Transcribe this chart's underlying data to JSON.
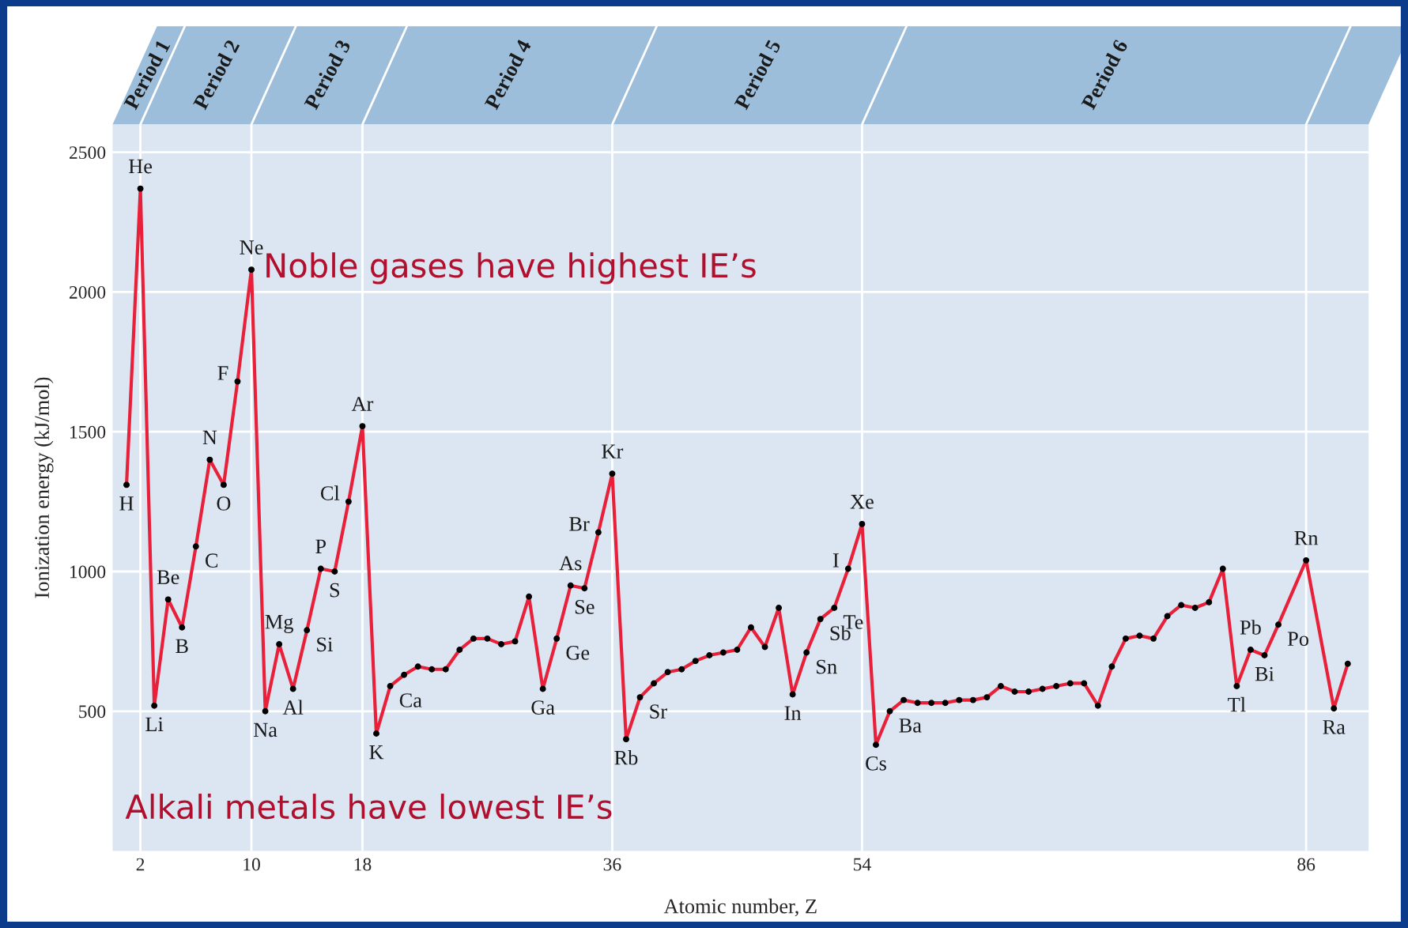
{
  "chart_data": {
    "type": "line",
    "xlabel": "Atomic number, Z",
    "ylabel": "Ionization energy (kJ/mol)",
    "xlim": [
      0,
      90.5
    ],
    "xticks": [
      2,
      10,
      18,
      36,
      54,
      86
    ],
    "ylim": [
      0,
      2600
    ],
    "yticks": [
      500,
      1000,
      1500,
      2000,
      2500
    ],
    "grid": true,
    "marker": "circle",
    "line_style": "solid",
    "series": [
      {
        "color": "#e8203a",
        "x": [
          1,
          2,
          3,
          4,
          5,
          6,
          7,
          8,
          9,
          10,
          11,
          12,
          13,
          14,
          15,
          16,
          17,
          18,
          19,
          20,
          21,
          22,
          23,
          24,
          25,
          26,
          27,
          28,
          29,
          30,
          31,
          32,
          33,
          34,
          35,
          36,
          37,
          38,
          39,
          40,
          41,
          42,
          43,
          44,
          45,
          46,
          47,
          48,
          49,
          50,
          51,
          52,
          53,
          54,
          55,
          56,
          57,
          58,
          59,
          60,
          61,
          62,
          63,
          64,
          65,
          66,
          67,
          68,
          69,
          70,
          71,
          72,
          73,
          74,
          75,
          76,
          77,
          78,
          79,
          80,
          81,
          82,
          83,
          84,
          86,
          88,
          89
        ],
        "values": [
          1310,
          2370,
          520,
          900,
          800,
          1090,
          1400,
          1310,
          1680,
          2080,
          500,
          740,
          580,
          790,
          1010,
          1000,
          1250,
          1520,
          420,
          590,
          630,
          660,
          650,
          650,
          720,
          760,
          760,
          740,
          750,
          910,
          580,
          760,
          950,
          940,
          1140,
          1350,
          400,
          550,
          600,
          640,
          650,
          680,
          700,
          710,
          720,
          800,
          730,
          870,
          560,
          710,
          830,
          870,
          1010,
          1170,
          380,
          500,
          540,
          530,
          530,
          530,
          540,
          540,
          550,
          590,
          570,
          570,
          580,
          590,
          600,
          600,
          520,
          660,
          760,
          770,
          760,
          840,
          880,
          870,
          890,
          1010,
          590,
          720,
          700,
          810,
          1040,
          510,
          670
        ]
      }
    ],
    "annotations": [
      "Noble gases have highest IE’s",
      "Alkali metals have lowest IE’s",
      "Period 1",
      "Period 2",
      "Period 3",
      "Period 4",
      "Period 5",
      "Period 6",
      {
        "text": "H",
        "x": 1,
        "y": 1310
      },
      {
        "text": "He",
        "x": 2,
        "y": 2370
      },
      {
        "text": "Li",
        "x": 3,
        "y": 520
      },
      {
        "text": "Be",
        "x": 4,
        "y": 900
      },
      {
        "text": "B",
        "x": 5,
        "y": 800
      },
      {
        "text": "C",
        "x": 6,
        "y": 1090
      },
      {
        "text": "N",
        "x": 7,
        "y": 1400
      },
      {
        "text": "O",
        "x": 8,
        "y": 1310
      },
      {
        "text": "F",
        "x": 9,
        "y": 1680
      },
      {
        "text": "Ne",
        "x": 10,
        "y": 2080
      },
      {
        "text": "Na",
        "x": 11,
        "y": 500
      },
      {
        "text": "Mg",
        "x": 12,
        "y": 740
      },
      {
        "text": "Al",
        "x": 13,
        "y": 580
      },
      {
        "text": "Si",
        "x": 14,
        "y": 790
      },
      {
        "text": "P",
        "x": 15,
        "y": 1010
      },
      {
        "text": "S",
        "x": 16,
        "y": 1000
      },
      {
        "text": "Cl",
        "x": 17,
        "y": 1250
      },
      {
        "text": "Ar",
        "x": 18,
        "y": 1520
      },
      {
        "text": "K",
        "x": 19,
        "y": 420
      },
      {
        "text": "Ca",
        "x": 20,
        "y": 590
      },
      {
        "text": "Ga",
        "x": 31,
        "y": 580
      },
      {
        "text": "Ge",
        "x": 32,
        "y": 760
      },
      {
        "text": "As",
        "x": 33,
        "y": 950
      },
      {
        "text": "Se",
        "x": 34,
        "y": 940
      },
      {
        "text": "Br",
        "x": 35,
        "y": 1140
      },
      {
        "text": "Kr",
        "x": 36,
        "y": 1350
      },
      {
        "text": "Rb",
        "x": 37,
        "y": 400
      },
      {
        "text": "Sr",
        "x": 38,
        "y": 550
      },
      {
        "text": "In",
        "x": 49,
        "y": 560
      },
      {
        "text": "Sn",
        "x": 50,
        "y": 710
      },
      {
        "text": "Sb",
        "x": 51,
        "y": 830
      },
      {
        "text": "Te",
        "x": 52,
        "y": 870
      },
      {
        "text": "I",
        "x": 53,
        "y": 1010
      },
      {
        "text": "Xe",
        "x": 54,
        "y": 1170
      },
      {
        "text": "Cs",
        "x": 55,
        "y": 380
      },
      {
        "text": "Ba",
        "x": 56,
        "y": 500
      },
      {
        "text": "Tl",
        "x": 81,
        "y": 590
      },
      {
        "text": "Pb",
        "x": 82,
        "y": 720
      },
      {
        "text": "Bi",
        "x": 83,
        "y": 700
      },
      {
        "text": "Po",
        "x": 84,
        "y": 810
      },
      {
        "text": "Rn",
        "x": 86,
        "y": 1040
      },
      {
        "text": "Ra",
        "x": 88,
        "y": 510
      }
    ]
  }
}
